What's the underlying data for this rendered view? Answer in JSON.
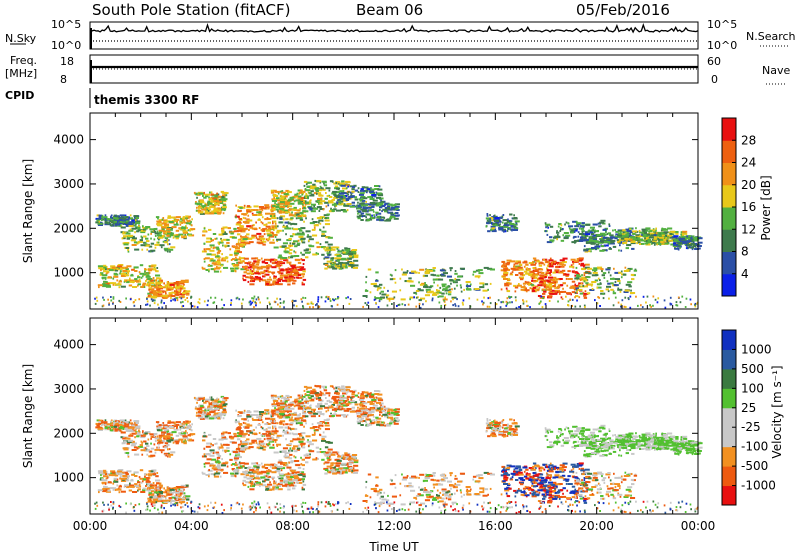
{
  "header": {
    "title": "South Pole Station (fitACF)",
    "beam": "Beam 06",
    "date": "05/Feb/2016"
  },
  "panels": {
    "nsky": {
      "label": "N.Sky",
      "tick_top": "10^5",
      "tick_bottom": "10^0",
      "right_label": "N.Search",
      "right_tick_top": "10^5",
      "right_tick_bottom": "10^0"
    },
    "freq": {
      "label_line1": "Freq.",
      "label_line2": "[MHz]",
      "tick_top": "18",
      "tick_bottom": "8",
      "right_label": "Nave",
      "right_tick_top": "60",
      "right_tick_bottom": "0"
    },
    "cpid": {
      "label": "CPID",
      "program": "themis 3300 RF"
    }
  },
  "colors": {
    "power": [
      "#0b20e8",
      "#2b4fa6",
      "#3e7a4c",
      "#52b040",
      "#e8c81a",
      "#f09018",
      "#ee6010",
      "#e81010"
    ],
    "velocity": [
      "#e81010",
      "#ee5a10",
      "#f29020",
      "#c8c8c8",
      "#c8c8c8",
      "#52c030",
      "#3a7a40",
      "#2a5aa0",
      "#1030c0"
    ]
  },
  "chart_data": [
    {
      "type": "heatmap",
      "title": "",
      "ylabel": "Slant Range [km]",
      "xlabel": "",
      "ylim": [
        180,
        4600
      ],
      "yticks": [
        1000,
        2000,
        3000,
        4000
      ],
      "xlim": [
        0,
        24
      ],
      "colorbar": {
        "label": "Power [dB]",
        "ticks": [
          "4",
          "8",
          "12",
          "16",
          "20",
          "24",
          "28"
        ],
        "range": [
          0,
          32
        ]
      }
    },
    {
      "type": "heatmap",
      "title": "",
      "ylabel": "Slant Range [km]",
      "xlabel": "Time UT",
      "ylim": [
        180,
        4600
      ],
      "yticks": [
        1000,
        2000,
        3000,
        4000
      ],
      "xlim": [
        0,
        24
      ],
      "xticks": [
        "00:00",
        "04:00",
        "08:00",
        "12:00",
        "16:00",
        "20:00",
        "00:00"
      ],
      "colorbar": {
        "label": "Velocity [m s⁻¹]",
        "ticks": [
          "1000",
          "500",
          "100",
          "25",
          "-25",
          "-100",
          "-500",
          "-1000"
        ]
      }
    }
  ]
}
